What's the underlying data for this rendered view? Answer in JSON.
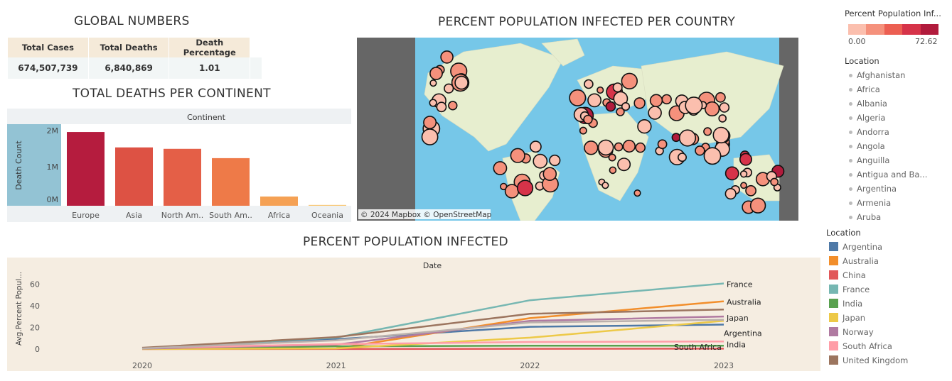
{
  "global": {
    "title": "GLOBAL NUMBERS",
    "headers": [
      "Total Cases",
      "Total Deaths",
      "Death Percentage"
    ],
    "values": [
      "674,507,739",
      "6,840,869",
      "1.01"
    ]
  },
  "continent_chart": {
    "title": "TOTAL DEATHS PER CONTINENT",
    "header": "Continent",
    "ylabel": "Death Count",
    "ticks": [
      "2M",
      "1M",
      "0M"
    ]
  },
  "map": {
    "title": "PERCENT POPULATION INFECTED PER COUNTRY",
    "attribution": "© 2024 Mapbox  © OpenStreetMap",
    "legend_title": "Percent Population Inf...",
    "legend_min": "0.00",
    "legend_max": "72.62",
    "legend_colors": [
      "#fbbfae",
      "#f5917c",
      "#ec5f52",
      "#d63349",
      "#b11b3c"
    ],
    "location_title": "Location",
    "locations": [
      "Afghanistan",
      "Africa",
      "Albania",
      "Algeria",
      "Andorra",
      "Angola",
      "Anguilla",
      "Antigua and Ba...",
      "Argentina",
      "Armenia",
      "Aruba"
    ]
  },
  "line_chart": {
    "title": "PERCENT POPULATION INFECTED",
    "header": "Date",
    "ylabel": "Avg.Percent Popul...",
    "legend_title": "Location"
  },
  "chart_data": [
    {
      "type": "bar",
      "title": "TOTAL DEATHS PER CONTINENT",
      "xlabel": "Continent",
      "ylabel": "Death Count",
      "categories": [
        "Europe",
        "Asia",
        "North Am..",
        "South Am..",
        "Africa",
        "Oceania"
      ],
      "display_categories": [
        "Europe",
        "Asia",
        "North Am..",
        "South Am..",
        "Africa",
        "Oceania"
      ],
      "values": [
        2060000,
        1630000,
        1590000,
        1330000,
        258000,
        23000
      ],
      "colors": [
        "#b51c3e",
        "#dd5244",
        "#e45f47",
        "#ee7a48",
        "#f5a154",
        "#f9c773"
      ],
      "ylim": [
        0,
        2200000
      ]
    },
    {
      "type": "line",
      "title": "PERCENT POPULATION INFECTED",
      "xlabel": "Date",
      "ylabel": "Avg.Percent Popul...",
      "x": [
        "2020",
        "2021",
        "2022",
        "2023"
      ],
      "ylim": [
        -4,
        70
      ],
      "yticks": [
        0,
        20,
        40,
        60
      ],
      "series": [
        {
          "name": "Argentina",
          "color": "#4e79a7",
          "values": [
            0.5,
            9,
            20.5,
            22.5
          ]
        },
        {
          "name": "Australia",
          "color": "#f28e2b",
          "values": [
            0,
            0.5,
            28.5,
            44
          ]
        },
        {
          "name": "China",
          "color": "#e15759",
          "values": [
            0,
            0,
            0.2,
            0.3
          ]
        },
        {
          "name": "France",
          "color": "#76b7b2",
          "values": [
            0.8,
            10.5,
            45,
            60.5
          ]
        },
        {
          "name": "India",
          "color": "#59a14f",
          "values": [
            0.1,
            2.5,
            3,
            3
          ]
        },
        {
          "name": "Japan",
          "color": "#edc948",
          "values": [
            0,
            0.5,
            10.5,
            26
          ]
        },
        {
          "name": "Norway",
          "color": "#b07aa1",
          "values": [
            0.3,
            4,
            26,
            30
          ]
        },
        {
          "name": "South Africa",
          "color": "#ff9da7",
          "values": [
            1,
            4.5,
            6.5,
            7
          ]
        },
        {
          "name": "United Kingdom",
          "color": "#9c755f",
          "values": [
            1.2,
            11,
            32.5,
            36.5
          ]
        },
        {
          "name": "",
          "color": "#bab0ac",
          "values": [
            0.5,
            8,
            24.5,
            27
          ]
        }
      ],
      "end_labels": [
        "France",
        "Australia",
        "Japan",
        "South Africa",
        "Argentina",
        "India"
      ]
    }
  ]
}
